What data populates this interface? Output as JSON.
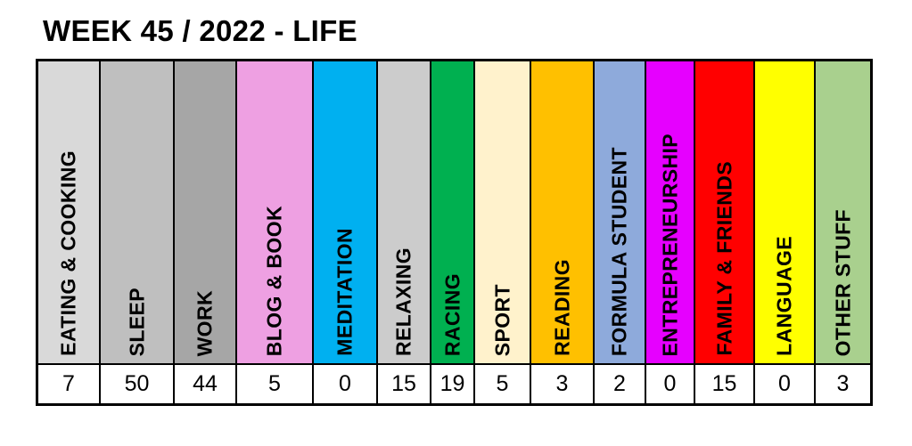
{
  "title": "WEEK 45 / 2022 - LIFE",
  "categories": [
    {
      "label": "EATING & COOKING",
      "value": "7",
      "color": "#d9d9d9"
    },
    {
      "label": "SLEEP",
      "value": "50",
      "color": "#bfbfbf"
    },
    {
      "label": "WORK",
      "value": "44",
      "color": "#a6a6a6"
    },
    {
      "label": "BLOG & BOOK",
      "value": "5",
      "color": "#eea0e2"
    },
    {
      "label": "MEDITATION",
      "value": "0",
      "color": "#00b0f0"
    },
    {
      "label": "RELAXING",
      "value": "15",
      "color": "#cccccc"
    },
    {
      "label": "RACING",
      "value": "19",
      "color": "#00b050"
    },
    {
      "label": "SPORT",
      "value": "5",
      "color": "#fff2cc"
    },
    {
      "label": "READING",
      "value": "3",
      "color": "#ffc000"
    },
    {
      "label": "FORMULA STUDENT",
      "value": "2",
      "color": "#8eaadb"
    },
    {
      "label": "ENTREPRENEURSHIP",
      "value": "0",
      "color": "#e600ff"
    },
    {
      "label": "FAMILY & FRIENDS",
      "value": "15",
      "color": "#ff0000"
    },
    {
      "label": "LANGUAGE",
      "value": "0",
      "color": "#ffff00"
    },
    {
      "label": "OTHER STUFF",
      "value": "3",
      "color": "#a9d08e"
    }
  ]
}
